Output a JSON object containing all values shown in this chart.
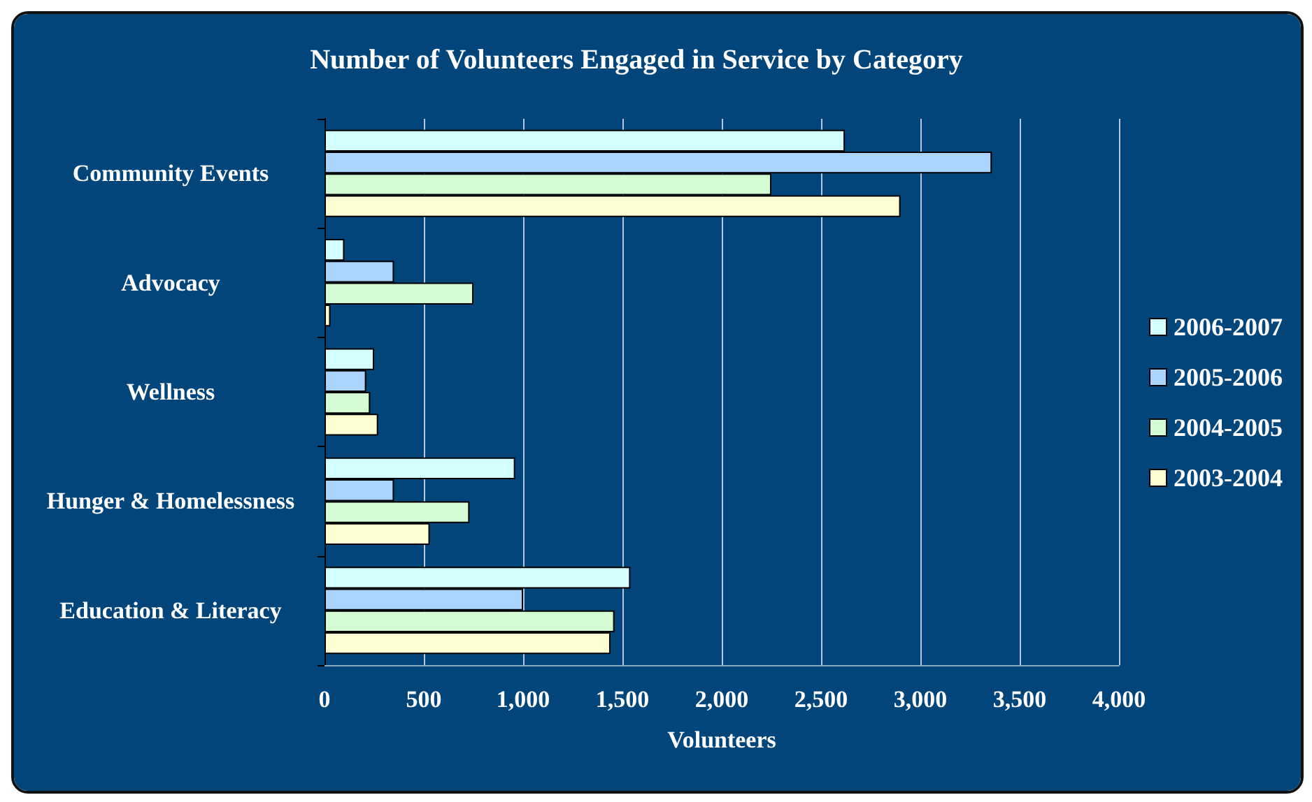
{
  "chart_data": {
    "type": "bar",
    "orientation": "horizontal",
    "title": "Number of Volunteers Engaged in Service by Category",
    "xlabel": "Volunteers",
    "categories": [
      "Community Events",
      "Advocacy",
      "Wellness",
      "Hunger & Homelessness",
      "Education & Literacy"
    ],
    "series": [
      {
        "name": "2006-2007",
        "color": "#d4ffff",
        "values": [
          2620,
          100,
          250,
          960,
          1540
        ]
      },
      {
        "name": "2005-2006",
        "color": "#a8d4ff",
        "values": [
          3360,
          350,
          210,
          350,
          1000
        ]
      },
      {
        "name": "2004-2005",
        "color": "#d4fdd4",
        "values": [
          2250,
          750,
          230,
          730,
          1460
        ]
      },
      {
        "name": "2003-2004",
        "color": "#ffffd4",
        "values": [
          2900,
          30,
          270,
          530,
          1440
        ]
      }
    ],
    "xlim": [
      0,
      4000
    ],
    "xticks": [
      {
        "value": 0,
        "label": "0"
      },
      {
        "value": 500,
        "label": "500"
      },
      {
        "value": 1000,
        "label": "1,000"
      },
      {
        "value": 1500,
        "label": "1,500"
      },
      {
        "value": 2000,
        "label": "2,000"
      },
      {
        "value": 2500,
        "label": "2,500"
      },
      {
        "value": 3000,
        "label": "3,000"
      },
      {
        "value": 3500,
        "label": "3,500"
      },
      {
        "value": 4000,
        "label": "4,000"
      }
    ],
    "grid": "x",
    "legend": "right"
  }
}
